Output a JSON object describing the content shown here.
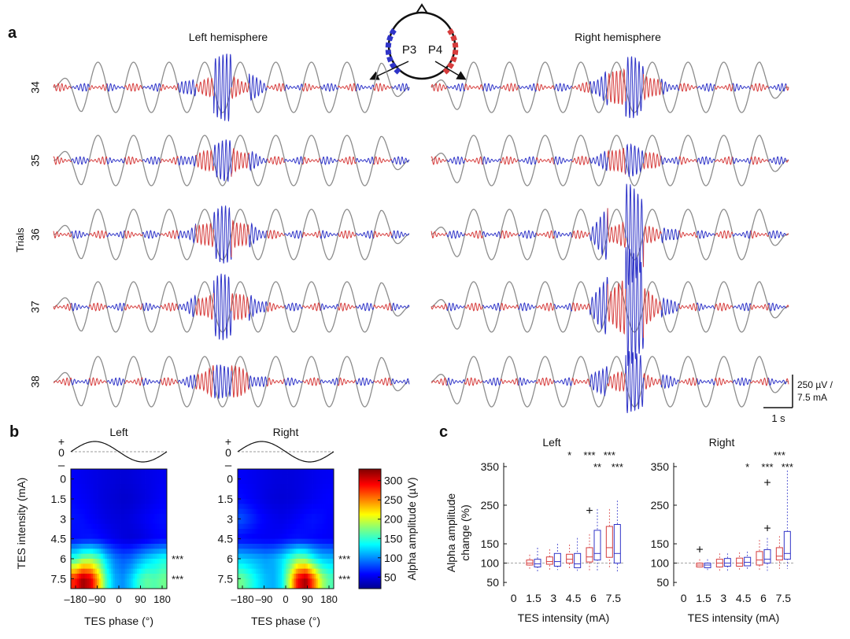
{
  "panel_labels": [
    "a",
    "b",
    "c"
  ],
  "colors": {
    "positive": "#d63c3c",
    "negative": "#2f34c8",
    "tes_sine": "#8c8c8c",
    "axis": "#111111"
  },
  "montage": {
    "left_electrode": "P3",
    "right_electrode": "P4"
  },
  "chart_data": [
    {
      "id": "a",
      "type": "line",
      "description_free": true,
      "hemispheres": [
        "Left hemisphere",
        "Right hemisphere"
      ],
      "ylabel": "Trials",
      "trials": [
        "34",
        "35",
        "36",
        "37",
        "38"
      ],
      "tes_cycles": 10,
      "burst_amplitude_uV": {
        "left": [
          [
            0.25,
            1.0
          ],
          [
            0.35,
            0.55
          ],
          [
            0.45,
            0.8
          ],
          [
            0.45,
            0.95
          ],
          [
            0.5,
            0.45
          ]
        ],
        "right": [
          [
            0.55,
            0.9
          ],
          [
            0.35,
            0.4
          ],
          [
            0.3,
            1.5
          ],
          [
            0.75,
            1.8
          ],
          [
            0.2,
            0.95
          ]
        ]
      },
      "scale_bar": {
        "vertical": "250 µV /",
        "vertical2": "7.5 mA",
        "horizontal": "1 s"
      }
    },
    {
      "id": "b",
      "type": "heatmap",
      "panels": [
        "Left",
        "Right"
      ],
      "sine_labels": {
        "plus": "+",
        "zero": "0",
        "minus": "–"
      },
      "xlabel": "TES phase (°)",
      "ylabel": "TES intensity (mA)",
      "x_ticks": [
        "–180",
        "–90",
        "0",
        "90",
        "180"
      ],
      "y_ticks": [
        "0",
        "1.5",
        "3",
        "4.5",
        "6",
        "7.5"
      ],
      "colorbar": {
        "label": "Alpha amplitude (µV)",
        "ticks": [
          "50",
          "100",
          "150",
          "200",
          "250",
          "300"
        ],
        "range": [
          20,
          330
        ]
      },
      "significance": [
        "",
        "",
        "",
        "",
        "***",
        "***"
      ],
      "values_left": [
        [
          55,
          52,
          50,
          48,
          46,
          45,
          44,
          45,
          47,
          49,
          51,
          53
        ],
        [
          58,
          55,
          52,
          48,
          45,
          43,
          41,
          42,
          45,
          48,
          52,
          56
        ],
        [
          62,
          60,
          56,
          52,
          48,
          46,
          45,
          47,
          51,
          55,
          59,
          61
        ],
        [
          60,
          62,
          63,
          60,
          55,
          50,
          46,
          44,
          46,
          50,
          55,
          58
        ],
        [
          150,
          175,
          180,
          160,
          120,
          95,
          85,
          90,
          105,
          120,
          130,
          140
        ],
        [
          280,
          320,
          300,
          230,
          150,
          110,
          100,
          120,
          150,
          165,
          160,
          170
        ]
      ],
      "values_right": [
        [
          55,
          53,
          51,
          49,
          47,
          46,
          46,
          47,
          49,
          51,
          53,
          54
        ],
        [
          60,
          56,
          52,
          48,
          45,
          44,
          45,
          47,
          50,
          53,
          56,
          58
        ],
        [
          82,
          72,
          62,
          56,
          52,
          50,
          52,
          56,
          60,
          62,
          60,
          56
        ],
        [
          58,
          56,
          55,
          54,
          54,
          56,
          60,
          62,
          60,
          58,
          56,
          55
        ],
        [
          120,
          115,
          110,
          105,
          110,
          125,
          150,
          175,
          170,
          140,
          120,
          115
        ],
        [
          170,
          150,
          130,
          115,
          110,
          130,
          200,
          290,
          320,
          260,
          190,
          160
        ]
      ]
    },
    {
      "id": "c",
      "type": "box",
      "panels": [
        "Left",
        "Right"
      ],
      "xlabel": "TES intensity (mA)",
      "ylabel_line1": "Alpha amplitude",
      "ylabel_line2": "change (%)",
      "x_ticks": [
        "0",
        "1.5",
        "3",
        "4.5",
        "6",
        "7.5"
      ],
      "y_ticks": [
        "50",
        "100",
        "150",
        "250",
        "350"
      ],
      "ylim": [
        40,
        360
      ],
      "baseline": 100,
      "left": {
        "positive": [
          null,
          {
            "min": 85,
            "q1": 95,
            "med": 100,
            "q3": 108,
            "max": 122,
            "outliers": []
          },
          {
            "min": 82,
            "q1": 97,
            "med": 104,
            "q3": 116,
            "max": 136,
            "outliers": []
          },
          {
            "min": 85,
            "q1": 100,
            "med": 110,
            "q3": 123,
            "max": 148,
            "outliers": []
          },
          {
            "min": 80,
            "q1": 103,
            "med": 116,
            "q3": 140,
            "max": 175,
            "outliers": [
              238
            ]
          },
          {
            "min": 85,
            "q1": 115,
            "med": 140,
            "q3": 195,
            "max": 240,
            "outliers": []
          }
        ],
        "negative": [
          null,
          {
            "min": 78,
            "q1": 90,
            "med": 98,
            "q3": 110,
            "max": 140,
            "outliers": []
          },
          {
            "min": 82,
            "q1": 92,
            "med": 104,
            "q3": 125,
            "max": 150,
            "outliers": []
          },
          {
            "min": 80,
            "q1": 88,
            "med": 98,
            "q3": 125,
            "max": 165,
            "outliers": []
          },
          {
            "min": 78,
            "q1": 108,
            "med": 125,
            "q3": 185,
            "max": 240,
            "outliers": []
          },
          {
            "min": 75,
            "q1": 100,
            "med": 125,
            "q3": 200,
            "max": 262,
            "outliers": []
          }
        ]
      },
      "right": {
        "positive": [
          null,
          {
            "min": 85,
            "q1": 90,
            "med": 95,
            "q3": 100,
            "max": 110,
            "outliers": [
              137
            ]
          },
          {
            "min": 80,
            "q1": 90,
            "med": 100,
            "q3": 110,
            "max": 125,
            "outliers": []
          },
          {
            "min": 80,
            "q1": 92,
            "med": 100,
            "q3": 113,
            "max": 128,
            "outliers": []
          },
          {
            "min": 80,
            "q1": 95,
            "med": 108,
            "q3": 130,
            "max": 160,
            "outliers": []
          },
          {
            "min": 85,
            "q1": 108,
            "med": 118,
            "q3": 140,
            "max": 170,
            "outliers": []
          }
        ],
        "negative": [
          null,
          {
            "min": 82,
            "q1": 88,
            "med": 95,
            "q3": 100,
            "max": 110,
            "outliers": []
          },
          {
            "min": 80,
            "q1": 92,
            "med": 100,
            "q3": 112,
            "max": 125,
            "outliers": []
          },
          {
            "min": 82,
            "q1": 93,
            "med": 102,
            "q3": 115,
            "max": 130,
            "outliers": []
          },
          {
            "min": 80,
            "q1": 100,
            "med": 110,
            "q3": 135,
            "max": 165,
            "outliers": [
              192,
              310
            ]
          },
          {
            "min": 85,
            "q1": 110,
            "med": 125,
            "q3": 182,
            "max": 340,
            "outliers": []
          }
        ]
      },
      "stars_left": {
        "positive": [
          "",
          "",
          "",
          "*",
          "***",
          "***"
        ],
        "negative": [
          "",
          "",
          "",
          "",
          "**",
          "***"
        ]
      },
      "stars_right": {
        "positive": [
          "",
          "",
          "",
          "",
          "",
          "***"
        ],
        "negative": [
          "",
          "",
          "",
          "*",
          "***",
          "***"
        ]
      }
    }
  ]
}
